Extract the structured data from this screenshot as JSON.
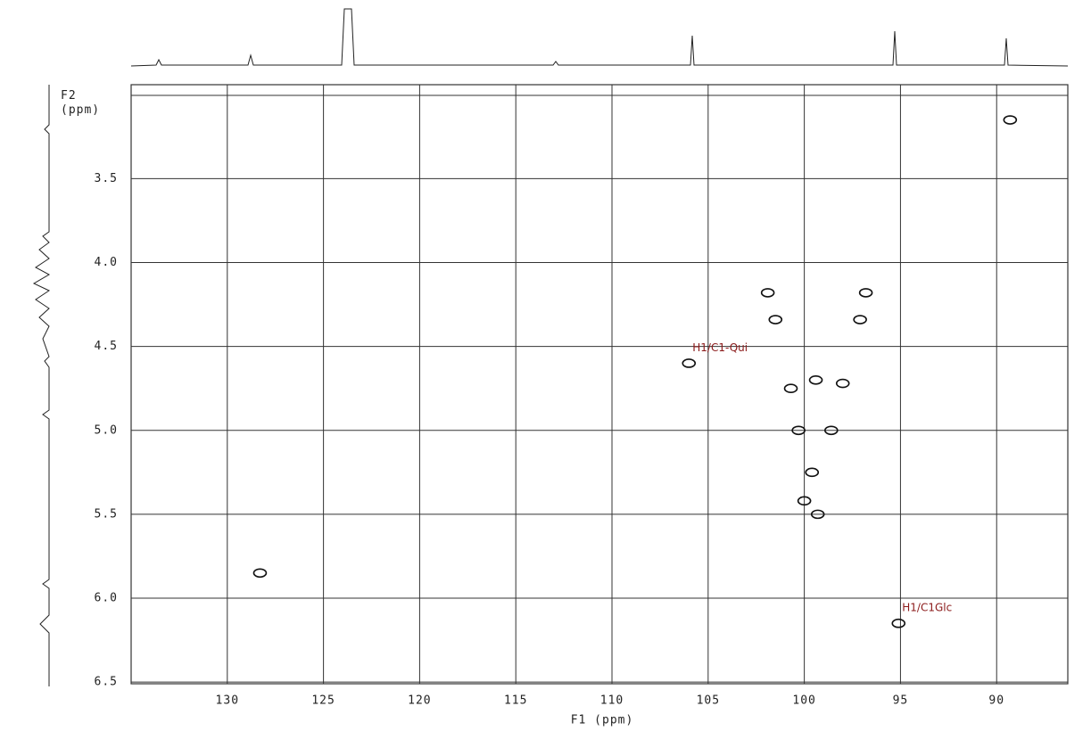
{
  "chart_data": {
    "type": "scatter",
    "x_label": "F1 (ppm)",
    "y_label": "F2 (ppm)",
    "xlim": [
      135,
      86.3
    ],
    "ylim": [
      2.94,
      6.51
    ],
    "xticks": [
      130,
      125,
      120,
      115,
      110,
      105,
      100,
      95,
      90
    ],
    "yticks": [
      3.5,
      {
        "value": 4,
        "label": "4.0"
      },
      4.5,
      {
        "value": 5,
        "label": "5.0"
      },
      5.5,
      {
        "value": 6,
        "label": "6.0"
      },
      6.5
    ],
    "grid": true,
    "color": "#111111",
    "x": [
      89.3,
      128.3,
      106.0,
      95.1,
      101.5,
      97.1,
      101.9,
      96.8,
      100.0,
      99.3,
      99.4,
      98.0,
      100.7,
      99.6,
      98.6,
      100.3
    ],
    "y": [
      3.15,
      5.85,
      4.6,
      6.15,
      4.34,
      4.34,
      4.18,
      4.18,
      5.42,
      5.5,
      4.7,
      4.72,
      4.75,
      5.25,
      5.0,
      5.0
    ],
    "annotations": [
      {
        "text": "H1/C1-Qui",
        "x": 106.0,
        "y": 4.6
      },
      {
        "text": "H1/C1Glc",
        "x": 95.1,
        "y": 6.15
      }
    ]
  }
}
